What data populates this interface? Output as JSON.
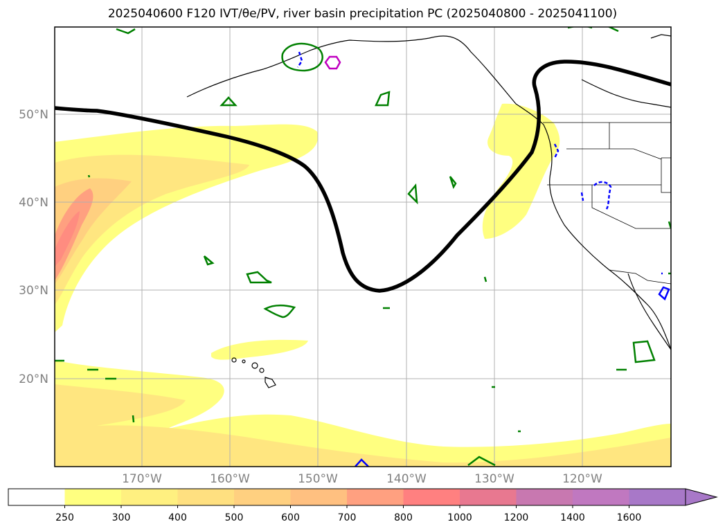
{
  "title": "2025040600 F120 IVT/θe/PV, river basin precipitation PC (2025040800 - 2025041100)",
  "lat_labels": [
    "50°N",
    "40°N",
    "30°N",
    "20°N"
  ],
  "lon_labels": [
    "170°W",
    "160°W",
    "150°W",
    "140°W",
    "130°W",
    "120°W"
  ],
  "colorbar": {
    "ticks": [
      "250",
      "300",
      "400",
      "500",
      "600",
      "700",
      "800",
      "1000",
      "1200",
      "1400",
      "1600"
    ],
    "colors": [
      "#ffffff",
      "#ffff80",
      "#fff080",
      "#ffe080",
      "#ffd080",
      "#ffc080",
      "#ffa080",
      "#ff8080",
      "#e87890",
      "#c878b0",
      "#c078c0",
      "#a878c8"
    ],
    "extend": "max"
  },
  "colors": {
    "jet_line": "#000000",
    "green_contour": "#008000",
    "blue_contour": "#0000ff",
    "magenta_contour": "#c000c0",
    "coastline": "#000000",
    "grid": "#b0b0b0"
  }
}
